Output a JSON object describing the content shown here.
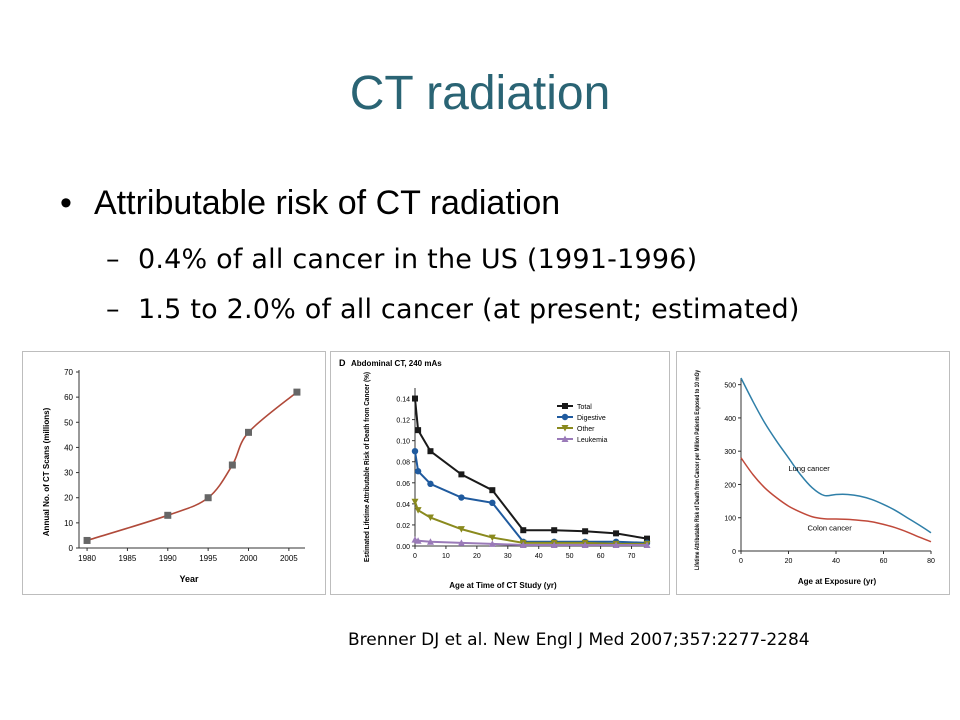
{
  "slide": {
    "title": "CT radiation",
    "bullet": "Attributable risk of CT radiation",
    "subbullets": [
      "0.4% of all cancer in the US (1991-1996)",
      "1.5 to 2.0% of all cancer (at present; estimated)"
    ],
    "citation": "Brenner DJ et al. New Engl J Med 2007;357:2277-2284"
  },
  "chart_data": [
    {
      "type": "line",
      "title": "",
      "xlabel": "Year",
      "ylabel": "Annual No. of CT Scans (millions)",
      "xlim": [
        1979,
        2007
      ],
      "ylim": [
        0,
        70
      ],
      "xticks": [
        1980,
        1985,
        1990,
        1995,
        2000,
        2005
      ],
      "yticks": [
        0,
        10,
        20,
        30,
        40,
        50,
        60,
        70
      ],
      "line_color": "#b04a3a",
      "marker_color": "#666666",
      "series": [
        {
          "x": [
            1980,
            1990,
            1995,
            1998,
            2000,
            2006
          ],
          "y": [
            3,
            13,
            20,
            33,
            46,
            62
          ]
        }
      ]
    },
    {
      "type": "line",
      "panel_label": "D",
      "title": "Abdominal CT, 240 mAs",
      "xlabel": "Age at Time of CT Study (yr)",
      "ylabel": "Estimated Lifetime Attributable Risk of Death from Cancer (%)",
      "xlim": [
        0,
        75
      ],
      "ylim": [
        0,
        0.15
      ],
      "xticks": [
        0,
        10,
        20,
        30,
        40,
        50,
        60,
        70
      ],
      "yticks": [
        "0.00",
        "0.02",
        "0.04",
        "0.06",
        "0.08",
        "0.10",
        "0.12",
        "0.14"
      ],
      "legend_position": "top-right",
      "x": [
        0,
        1,
        5,
        15,
        25,
        35,
        45,
        55,
        65,
        75
      ],
      "series": [
        {
          "name": "Total",
          "color": "#1a1a1a",
          "marker": "square",
          "values": [
            0.14,
            0.11,
            0.09,
            0.068,
            0.053,
            0.015,
            0.015,
            0.014,
            0.012,
            0.007
          ]
        },
        {
          "name": "Digestive",
          "color": "#1f5a9e",
          "marker": "circle",
          "values": [
            0.09,
            0.071,
            0.059,
            0.046,
            0.041,
            0.004,
            0.004,
            0.004,
            0.004,
            0.003
          ]
        },
        {
          "name": "Other",
          "color": "#8a8a1e",
          "marker": "triangle-down",
          "values": [
            0.042,
            0.034,
            0.027,
            0.016,
            0.008,
            0.003,
            0.003,
            0.003,
            0.002,
            0.002
          ]
        },
        {
          "name": "Leukemia",
          "color": "#9a7ab8",
          "marker": "triangle-up",
          "values": [
            0.006,
            0.005,
            0.004,
            0.003,
            0.002,
            0.001,
            0.001,
            0.001,
            0.001,
            0.001
          ]
        }
      ]
    },
    {
      "type": "line",
      "title": "",
      "xlabel": "Age at Exposure (yr)",
      "ylabel": "Lifetime Attributable Risk of Death from Cancer per Million Patients Exposed to 10 mGy",
      "xlim": [
        0,
        80
      ],
      "ylim": [
        0,
        520
      ],
      "xticks": [
        0,
        20,
        40,
        60,
        80
      ],
      "yticks": [
        0,
        100,
        200,
        300,
        400,
        500
      ],
      "x": [
        0,
        5,
        10,
        15,
        20,
        25,
        30,
        35,
        40,
        45,
        50,
        55,
        60,
        65,
        70,
        75,
        80
      ],
      "series": [
        {
          "name": "Lung cancer",
          "color": "#2f7fa8",
          "values": [
            520,
            450,
            385,
            330,
            280,
            230,
            190,
            167,
            170,
            170,
            165,
            155,
            140,
            122,
            100,
            78,
            55
          ]
        },
        {
          "name": "Colon cancer",
          "color": "#c0493a",
          "values": [
            280,
            230,
            190,
            160,
            135,
            117,
            103,
            97,
            96,
            95,
            92,
            88,
            80,
            70,
            57,
            42,
            28
          ]
        }
      ]
    }
  ]
}
